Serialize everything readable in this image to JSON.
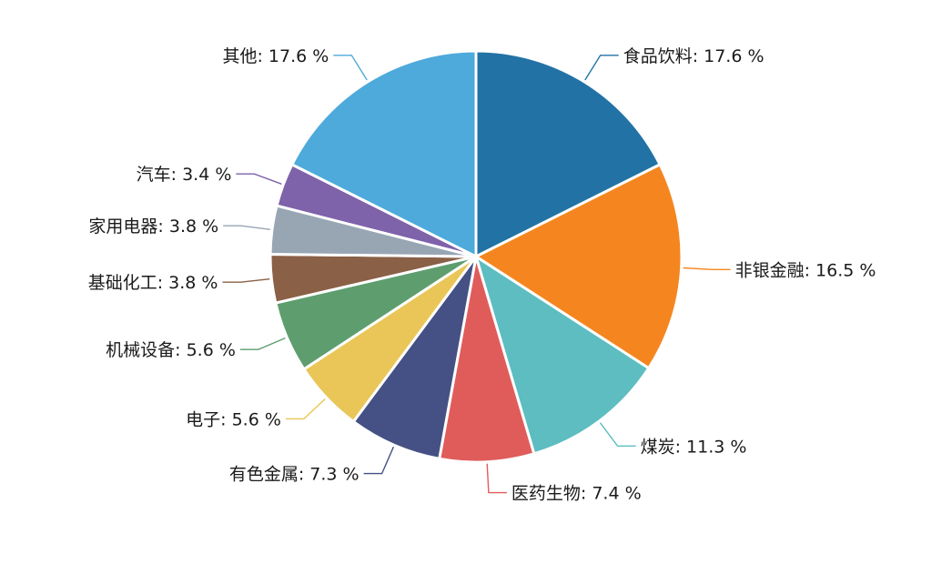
{
  "chart_data": {
    "type": "pie",
    "title": "",
    "unit_suffix": " %",
    "slices": [
      {
        "label": "食品饮料",
        "value": 17.6,
        "color": "#2272A6"
      },
      {
        "label": "非银金融",
        "value": 16.5,
        "color": "#F5861F"
      },
      {
        "label": "煤炭",
        "value": 11.3,
        "color": "#5DBDC1"
      },
      {
        "label": "医药生物",
        "value": 7.4,
        "color": "#E05C5A"
      },
      {
        "label": "有色金属",
        "value": 7.3,
        "color": "#455184"
      },
      {
        "label": "电子",
        "value": 5.6,
        "color": "#E9C657"
      },
      {
        "label": "机械设备",
        "value": 5.6,
        "color": "#5E9E6E"
      },
      {
        "label": "基础化工",
        "value": 3.8,
        "color": "#8A6046"
      },
      {
        "label": "家用电器",
        "value": 3.8,
        "color": "#98A6B4"
      },
      {
        "label": "汽车",
        "value": 3.4,
        "color": "#7E62AA"
      },
      {
        "label": "其他",
        "value": 17.6,
        "color": "#4DAADB"
      }
    ]
  }
}
